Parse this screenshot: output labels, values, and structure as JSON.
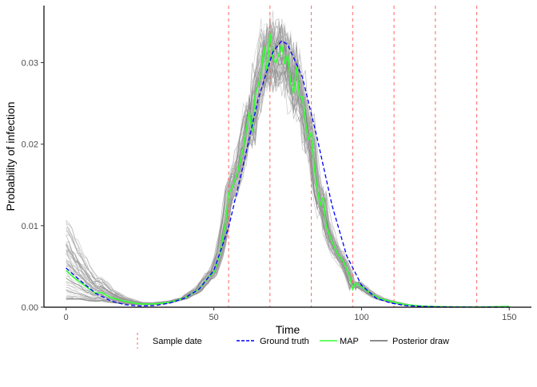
{
  "chart_data": {
    "type": "line",
    "xlabel": "Time",
    "ylabel": "Probability of infection",
    "xlim": [
      -7.5,
      157.5
    ],
    "ylim": [
      0,
      0.037
    ],
    "xticks": [
      0,
      50,
      100,
      150
    ],
    "xtick_labels": [
      "0",
      "50",
      "100",
      "150"
    ],
    "yticks": [
      0,
      0.01,
      0.02,
      0.03
    ],
    "ytick_labels": [
      "0.00",
      "0.01",
      "0.02",
      "0.03"
    ],
    "grid": false,
    "legend_position": "bottom",
    "sample_dates": [
      55,
      69,
      83,
      97,
      111,
      125,
      139
    ],
    "series": [
      {
        "name": "Ground truth",
        "style": "dashed",
        "color": "#0000ff",
        "x": [
          0,
          5,
          10,
          15,
          20,
          25,
          30,
          35,
          40,
          45,
          50,
          55,
          60,
          65,
          70,
          73,
          75,
          80,
          85,
          90,
          95,
          100,
          105,
          110,
          115,
          120,
          125,
          130,
          140,
          150
        ],
        "y": [
          0.0048,
          0.0032,
          0.0017,
          0.0008,
          0.0003,
          0.00015,
          0.0002,
          0.0005,
          0.0011,
          0.0022,
          0.0045,
          0.0098,
          0.0175,
          0.0255,
          0.0313,
          0.0327,
          0.0322,
          0.0282,
          0.0207,
          0.0125,
          0.0063,
          0.0027,
          0.0011,
          0.0005,
          0.0002,
          0.0001,
          5e-05,
          3e-05,
          1e-05,
          0.0
        ]
      },
      {
        "name": "MAP",
        "style": "solid",
        "color": "#33ff33",
        "x": [
          0,
          3,
          5,
          8,
          10,
          12,
          15,
          18,
          20,
          25,
          30,
          35,
          40,
          45,
          48,
          50,
          52,
          54,
          55,
          56,
          58,
          60,
          62,
          63,
          64,
          66,
          67,
          68,
          69,
          70,
          71,
          72,
          73,
          74,
          75,
          76,
          77,
          78,
          79,
          80,
          81,
          82,
          83,
          84,
          85,
          86,
          87,
          88,
          90,
          92,
          94,
          96,
          97,
          98,
          100,
          103,
          106,
          110,
          115,
          120,
          125,
          130,
          140,
          150
        ],
        "y": [
          0.0045,
          0.0035,
          0.003,
          0.0022,
          0.0017,
          0.0018,
          0.0012,
          0.0009,
          0.0007,
          0.0004,
          0.0004,
          0.0006,
          0.0011,
          0.0022,
          0.0036,
          0.0043,
          0.0065,
          0.0105,
          0.014,
          0.0145,
          0.0165,
          0.0195,
          0.024,
          0.0215,
          0.026,
          0.0285,
          0.032,
          0.0288,
          0.0336,
          0.0305,
          0.03,
          0.031,
          0.0322,
          0.0298,
          0.031,
          0.0275,
          0.0262,
          0.0295,
          0.0258,
          0.0258,
          0.0228,
          0.0205,
          0.0215,
          0.017,
          0.0145,
          0.0125,
          0.0135,
          0.01,
          0.008,
          0.0065,
          0.0055,
          0.0038,
          0.0022,
          0.003,
          0.0025,
          0.0017,
          0.0011,
          0.0007,
          0.0003,
          0.00015,
          8e-05,
          5e-05,
          2e-05,
          0.0001
        ]
      }
    ],
    "legend": [
      {
        "label": "Sample date",
        "style": "dashed",
        "color": "#ff6666"
      },
      {
        "label": "Ground truth",
        "style": "dashed",
        "color": "#0000ff"
      },
      {
        "label": "MAP",
        "style": "solid",
        "color": "#33ff33"
      },
      {
        "label": "Posterior draw",
        "style": "solid",
        "color": "#666666"
      }
    ],
    "posterior_draws": {
      "name": "Posterior draw",
      "color": "#666666"
    }
  }
}
